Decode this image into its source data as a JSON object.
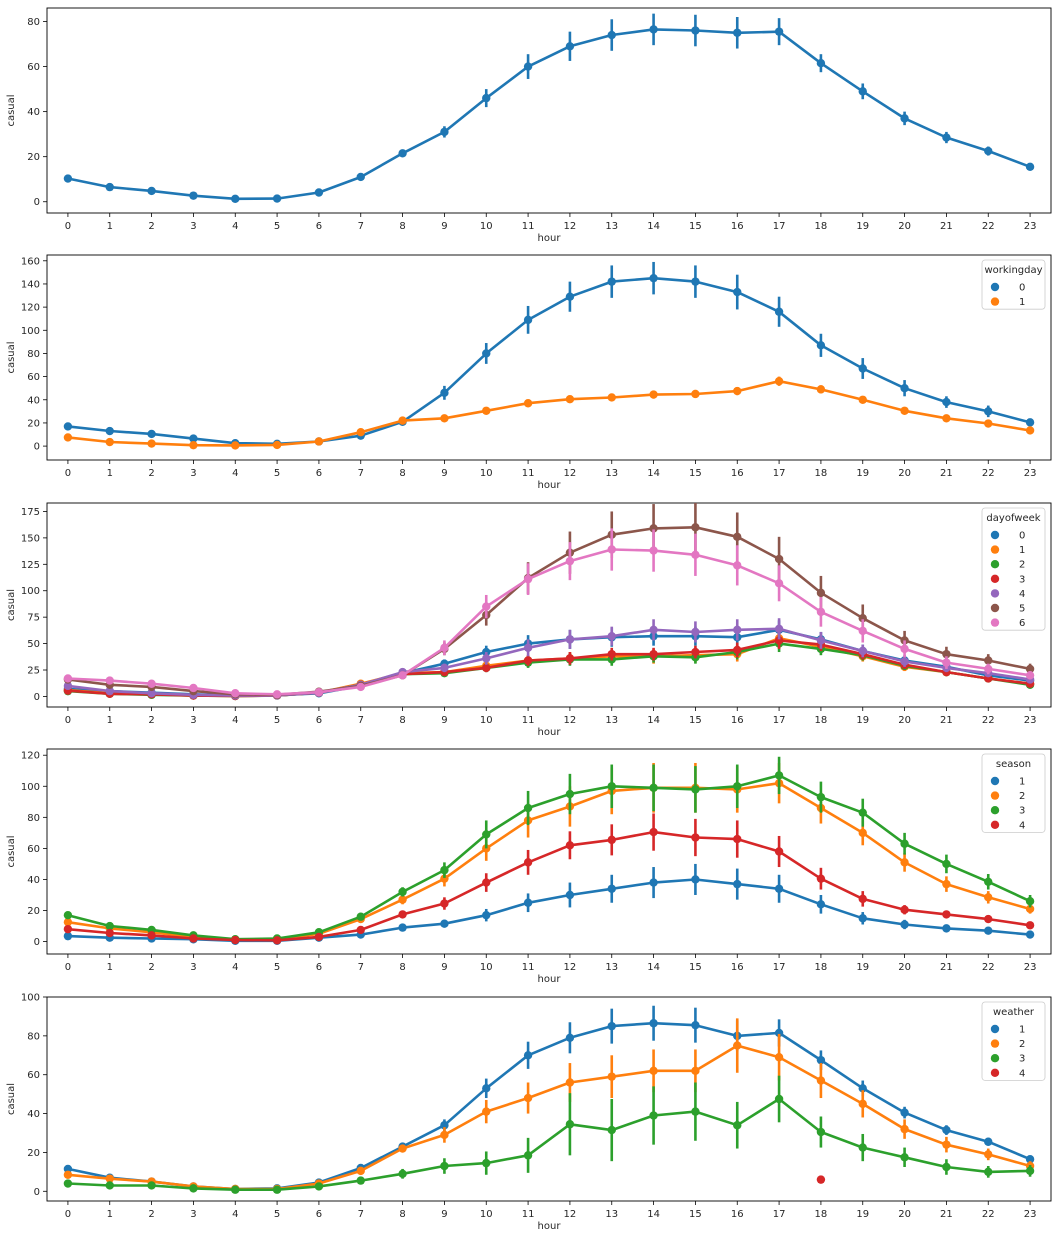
{
  "chart_data": [
    {
      "type": "line",
      "xlabel": "hour",
      "ylabel": "casual",
      "x": [
        0,
        1,
        2,
        3,
        4,
        5,
        6,
        7,
        8,
        9,
        10,
        11,
        12,
        13,
        14,
        15,
        16,
        17,
        18,
        19,
        20,
        21,
        22,
        23
      ],
      "ylim": [
        -5,
        86
      ],
      "yticks": [
        0,
        20,
        40,
        60,
        80
      ],
      "legend_title": "",
      "series": [
        {
          "name": "",
          "color": "#1f77b4",
          "values": [
            10.3,
            6.5,
            4.8,
            2.7,
            1.3,
            1.4,
            4.1,
            11,
            21.5,
            31,
            46,
            60,
            69,
            74,
            76.5,
            76,
            75,
            75.5,
            61.5,
            49,
            37,
            28.5,
            22.5,
            15.5
          ],
          "err": [
            1,
            0.8,
            0.6,
            0.4,
            0.3,
            0.3,
            0.5,
            1,
            1.5,
            2.5,
            4,
            5.5,
            6.5,
            7,
            7,
            7,
            7,
            6,
            4,
            3.5,
            3,
            2.5,
            2,
            1.5
          ]
        }
      ]
    },
    {
      "type": "line",
      "xlabel": "hour",
      "ylabel": "casual",
      "x": [
        0,
        1,
        2,
        3,
        4,
        5,
        6,
        7,
        8,
        9,
        10,
        11,
        12,
        13,
        14,
        15,
        16,
        17,
        18,
        19,
        20,
        21,
        22,
        23
      ],
      "ylim": [
        -12,
        165
      ],
      "yticks": [
        0,
        20,
        40,
        60,
        80,
        100,
        120,
        140,
        160
      ],
      "legend_title": "workingday",
      "series": [
        {
          "name": "0",
          "color": "#1f77b4",
          "values": [
            17,
            13,
            10.5,
            6.5,
            2.5,
            2,
            4,
            9,
            21,
            46,
            80,
            109,
            129,
            142,
            145,
            142,
            133,
            116,
            87,
            67,
            50,
            38,
            30,
            20.5
          ],
          "err": [
            2,
            1.5,
            1.2,
            1,
            0.5,
            0.4,
            0.6,
            1.5,
            2,
            6,
            9,
            12,
            13,
            14,
            14,
            14,
            15,
            13,
            10,
            9,
            7,
            5,
            5,
            3
          ]
        },
        {
          "name": "1",
          "color": "#ff7f0e",
          "values": [
            7.5,
            3.5,
            2.2,
            0.8,
            0.6,
            1,
            4,
            12,
            22,
            24,
            30.5,
            37,
            40.5,
            42,
            44.5,
            45,
            47.5,
            56,
            49,
            40,
            30.5,
            24,
            19.5,
            13.5
          ],
          "err": [
            1,
            0.5,
            0.4,
            0.2,
            0.2,
            0.3,
            0.5,
            1,
            1.5,
            2,
            2.5,
            3,
            3,
            3,
            3.5,
            3.5,
            3.5,
            4,
            3.5,
            3,
            2.5,
            2,
            1.5,
            1.2
          ]
        }
      ]
    },
    {
      "type": "line",
      "xlabel": "hour",
      "ylabel": "casual",
      "x": [
        0,
        1,
        2,
        3,
        4,
        5,
        6,
        7,
        8,
        9,
        10,
        11,
        12,
        13,
        14,
        15,
        16,
        17,
        18,
        19,
        20,
        21,
        22,
        23
      ],
      "ylim": [
        -10,
        183
      ],
      "yticks": [
        0,
        25,
        50,
        75,
        100,
        125,
        150,
        175
      ],
      "legend_title": "dayofweek",
      "series": [
        {
          "name": "0",
          "color": "#1f77b4",
          "values": [
            7,
            5,
            3.5,
            2,
            0.8,
            1.2,
            3,
            10,
            22,
            31,
            42,
            50,
            54,
            56,
            57,
            57,
            56,
            63,
            54,
            43,
            34,
            28,
            20,
            15
          ],
          "err": [
            1.5,
            1,
            0.8,
            0.5,
            0.3,
            0.3,
            0.7,
            1.5,
            2.5,
            4,
            6,
            8,
            9,
            9,
            9,
            9,
            9,
            9,
            7,
            6,
            5,
            4,
            3,
            2.5
          ]
        },
        {
          "name": "1",
          "color": "#ff7f0e",
          "values": [
            6,
            3,
            2,
            1,
            0.5,
            1,
            3.5,
            12,
            22,
            23,
            29,
            34,
            36,
            38,
            38,
            39,
            40,
            55,
            47,
            38,
            28,
            23,
            17,
            12
          ],
          "err": [
            1.5,
            0.8,
            0.5,
            0.3,
            0.2,
            0.3,
            0.8,
            2,
            2.5,
            3,
            4,
            5,
            6,
            6,
            7,
            7,
            7,
            8,
            6,
            5,
            4,
            3,
            3,
            2
          ]
        },
        {
          "name": "2",
          "color": "#2ca02c",
          "values": [
            5,
            2.5,
            1.5,
            0.8,
            0.4,
            0.8,
            3.5,
            11,
            21,
            22,
            27,
            32,
            35,
            35,
            38,
            37,
            42,
            50,
            45,
            39,
            29,
            23,
            17,
            11
          ],
          "err": [
            1,
            0.6,
            0.4,
            0.3,
            0.2,
            0.3,
            0.7,
            1.5,
            2.5,
            3,
            4,
            5,
            6,
            6,
            6,
            6,
            7,
            8,
            6,
            5,
            4,
            3,
            2.5,
            2
          ]
        },
        {
          "name": "3",
          "color": "#d62728",
          "values": [
            5.5,
            2.5,
            2,
            0.8,
            0.4,
            0.9,
            3.5,
            11,
            21,
            23,
            27,
            34,
            36,
            40,
            40,
            42,
            44,
            53,
            49,
            40,
            30,
            23,
            17,
            12
          ],
          "err": [
            1.2,
            0.6,
            0.5,
            0.3,
            0.2,
            0.3,
            0.8,
            1.5,
            2.5,
            3,
            4,
            5,
            6,
            6,
            6,
            6,
            7,
            8,
            6,
            5,
            4,
            3,
            2.5,
            2
          ]
        },
        {
          "name": "4",
          "color": "#9467bd",
          "values": [
            10,
            5,
            3,
            1.5,
            0.8,
            1,
            3.5,
            11,
            23,
            27,
            36,
            46,
            54,
            57,
            63,
            61,
            63,
            64,
            53,
            43,
            33,
            27,
            22,
            16
          ],
          "err": [
            2,
            1,
            0.8,
            0.4,
            0.3,
            0.3,
            0.8,
            2,
            3,
            4,
            6,
            8,
            9,
            9,
            10,
            10,
            10,
            10,
            8,
            6,
            5,
            4,
            3,
            2.5
          ]
        },
        {
          "name": "5",
          "color": "#8c564b",
          "values": [
            16,
            11,
            9,
            5,
            2,
            1.5,
            4.5,
            10,
            20,
            45,
            77,
            112,
            136,
            153,
            159,
            160,
            151,
            130,
            98,
            74,
            53,
            40,
            34,
            26
          ],
          "err": [
            2,
            1.5,
            1.2,
            0.8,
            0.5,
            0.4,
            0.8,
            1.5,
            2.5,
            6,
            10,
            15,
            20,
            22,
            23,
            23,
            23,
            21,
            16,
            13,
            9,
            7,
            6,
            5
          ]
        },
        {
          "name": "6",
          "color": "#e377c2",
          "values": [
            17,
            15,
            12,
            8,
            3,
            2,
            4,
            9,
            20,
            46,
            85,
            111,
            128,
            139,
            138,
            134,
            124,
            107,
            80,
            62,
            45,
            32,
            26,
            20
          ],
          "err": [
            2,
            1.8,
            1.5,
            1,
            0.5,
            0.4,
            0.7,
            1.5,
            2.5,
            7,
            11,
            15,
            18,
            20,
            20,
            20,
            19,
            17,
            14,
            11,
            8,
            6,
            5,
            4
          ]
        }
      ]
    },
    {
      "type": "line",
      "xlabel": "hour",
      "ylabel": "casual",
      "x": [
        0,
        1,
        2,
        3,
        4,
        5,
        6,
        7,
        8,
        9,
        10,
        11,
        12,
        13,
        14,
        15,
        16,
        17,
        18,
        19,
        20,
        21,
        22,
        23
      ],
      "ylim": [
        -8,
        124
      ],
      "yticks": [
        0,
        20,
        40,
        60,
        80,
        100,
        120
      ],
      "legend_title": "season",
      "series": [
        {
          "name": "1",
          "color": "#1f77b4",
          "values": [
            3.5,
            2.5,
            2,
            1.5,
            0.5,
            0.5,
            2.5,
            4.5,
            9,
            11.5,
            17,
            25,
            30,
            34,
            38,
            40,
            37,
            34,
            24,
            15,
            11,
            8.5,
            7,
            4.5
          ],
          "err": [
            0.8,
            0.5,
            0.4,
            0.3,
            0.2,
            0.2,
            0.5,
            0.8,
            1.5,
            2.5,
            4,
            6,
            8,
            9,
            10,
            10,
            10,
            9,
            6,
            4,
            3,
            2,
            1.5,
            1
          ]
        },
        {
          "name": "2",
          "color": "#ff7f0e",
          "values": [
            12.5,
            8.5,
            6,
            3,
            1.3,
            1.5,
            5,
            14.5,
            27,
            40.5,
            60,
            78,
            87,
            97,
            99,
            99,
            98,
            102,
            86,
            70,
            51,
            37,
            28.5,
            21
          ],
          "err": [
            2,
            1.5,
            1,
            0.8,
            0.4,
            0.4,
            1,
            2,
            3,
            5,
            8,
            11,
            13,
            15,
            16,
            16,
            15,
            13,
            10,
            8,
            6,
            5,
            4,
            3
          ]
        },
        {
          "name": "3",
          "color": "#2ca02c",
          "values": [
            17,
            10,
            7.5,
            4,
            1.5,
            2,
            6,
            16,
            32,
            46,
            69,
            86,
            95,
            100,
            99,
            98,
            100,
            107,
            93,
            83,
            63,
            50,
            38.5,
            26
          ],
          "err": [
            2,
            1.5,
            1,
            0.8,
            0.4,
            0.4,
            1,
            2,
            3,
            5,
            9,
            11,
            13,
            14,
            15,
            15,
            14,
            12,
            10,
            9,
            7,
            6,
            5,
            4
          ]
        },
        {
          "name": "4",
          "color": "#d62728",
          "values": [
            8,
            5.5,
            4,
            2,
            1,
            0.8,
            3,
            7.5,
            17.5,
            24.5,
            38,
            51,
            62,
            65.5,
            70.5,
            67,
            66,
            58,
            40.5,
            27.5,
            20.5,
            17.5,
            14.5,
            10.5
          ],
          "err": [
            1.5,
            1,
            0.8,
            0.5,
            0.3,
            0.3,
            0.7,
            1.2,
            2,
            4,
            6,
            8,
            9,
            10,
            12,
            12,
            12,
            10,
            7,
            5,
            3,
            2,
            2,
            1.5
          ]
        }
      ]
    },
    {
      "type": "line",
      "xlabel": "hour",
      "ylabel": "casual",
      "x": [
        0,
        1,
        2,
        3,
        4,
        5,
        6,
        7,
        8,
        9,
        10,
        11,
        12,
        13,
        14,
        15,
        16,
        17,
        18,
        19,
        20,
        21,
        22,
        23
      ],
      "ylim": [
        -5,
        100
      ],
      "yticks": [
        0,
        20,
        40,
        60,
        80,
        100
      ],
      "legend_title": "weather",
      "series": [
        {
          "name": "1",
          "color": "#1f77b4",
          "values": [
            11.5,
            7,
            5,
            2.5,
            1.2,
            1.5,
            4.5,
            12,
            23,
            34,
            53,
            70,
            79,
            85,
            86.5,
            85.5,
            80,
            81.5,
            67.5,
            53,
            40.5,
            31.5,
            25.5,
            16.5
          ],
          "err": [
            1,
            0.7,
            0.6,
            0.3,
            0.2,
            0.3,
            0.5,
            1,
            1.5,
            3,
            5,
            7,
            8,
            9,
            9,
            9,
            8,
            7,
            5,
            4,
            3,
            2.5,
            2,
            1.5
          ]
        },
        {
          "name": "2",
          "color": "#ff7f0e",
          "values": [
            8.5,
            6.5,
            5,
            2.5,
            1.2,
            1.2,
            4,
            10.5,
            22,
            29,
            41,
            48,
            56,
            59,
            62,
            62,
            75,
            69,
            57,
            45,
            32,
            24,
            19,
            13
          ],
          "err": [
            1.2,
            1,
            0.8,
            0.5,
            0.3,
            0.3,
            0.6,
            1.2,
            2,
            4,
            6,
            8,
            10,
            11,
            11,
            11,
            14,
            12,
            9,
            7,
            5,
            4,
            3,
            2.5
          ]
        },
        {
          "name": "3",
          "color": "#2ca02c",
          "values": [
            4,
            3,
            3,
            1.5,
            0.8,
            0.8,
            2.5,
            5.5,
            9,
            13,
            14.5,
            18.5,
            34.5,
            31.5,
            39,
            41,
            34,
            47.5,
            30.5,
            22.5,
            17.5,
            12.5,
            10,
            10.5
          ],
          "err": [
            0.8,
            0.6,
            0.5,
            0.3,
            0.2,
            0.2,
            0.6,
            1,
            2.5,
            4,
            6,
            9,
            16,
            16,
            15,
            15,
            12,
            12,
            8,
            7,
            5,
            4,
            3,
            3
          ]
        },
        {
          "name": "4",
          "color": "#d62728",
          "values": [
            null,
            null,
            null,
            null,
            null,
            null,
            null,
            null,
            null,
            null,
            null,
            null,
            null,
            null,
            null,
            null,
            null,
            null,
            6,
            null,
            null,
            null,
            null,
            null
          ],
          "err": [
            0,
            0,
            0,
            0,
            0,
            0,
            0,
            0,
            0,
            0,
            0,
            0,
            0,
            0,
            0,
            0,
            0,
            0,
            0,
            0,
            0,
            0,
            0,
            0
          ]
        }
      ]
    }
  ]
}
